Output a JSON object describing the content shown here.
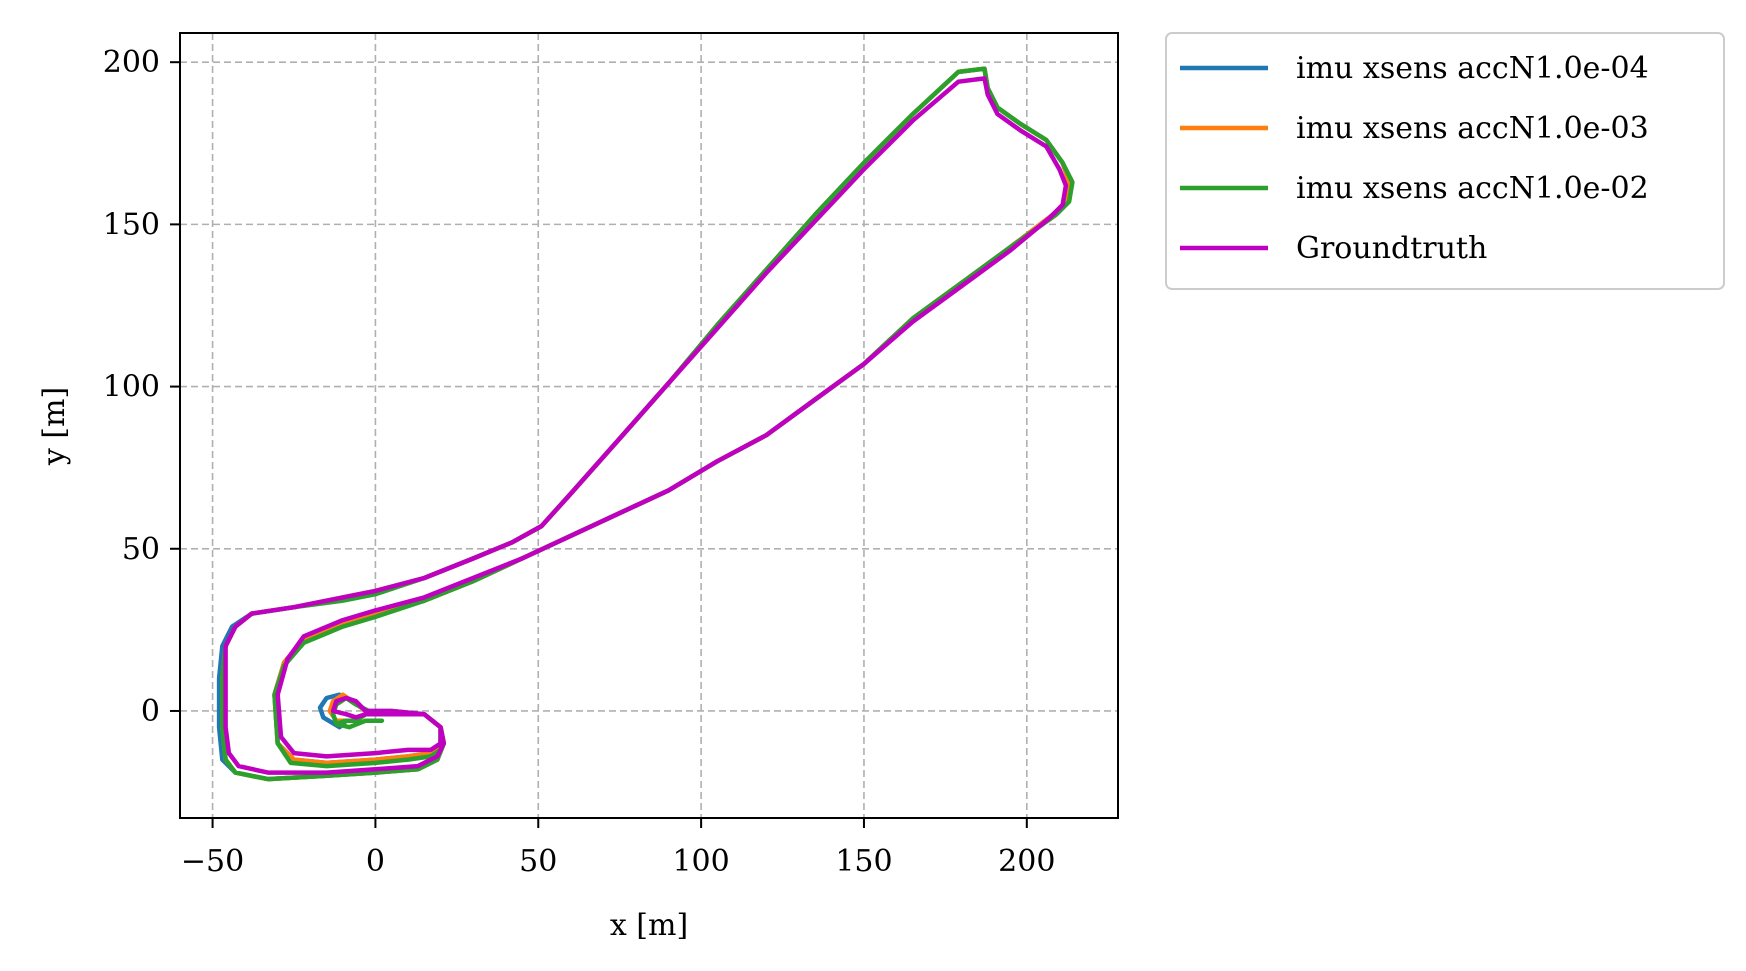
{
  "chart_data": {
    "type": "line",
    "title": "",
    "xlabel": "x [m]",
    "ylabel": "y [m]",
    "xlim": [
      -60,
      228
    ],
    "ylim": [
      -33,
      209
    ],
    "xticks": [
      -50,
      0,
      50,
      100,
      150,
      200
    ],
    "xtick_labels": [
      "−50",
      "0",
      "50",
      "100",
      "150",
      "200"
    ],
    "yticks": [
      0,
      50,
      100,
      150,
      200
    ],
    "ytick_labels": [
      "0",
      "50",
      "100",
      "150",
      "200"
    ],
    "grid": true,
    "legend_position": "outside-upper-right",
    "series": [
      {
        "name": "imu xsens accN1.0e-04",
        "color": "#1f77b4",
        "points": [
          [
            -11,
            -5
          ],
          [
            -16,
            -2
          ],
          [
            -17,
            1
          ],
          [
            -15,
            4
          ],
          [
            -11,
            5
          ],
          [
            -7,
            3
          ],
          [
            -3,
            0
          ],
          [
            5,
            0
          ],
          [
            15,
            -1
          ],
          [
            20,
            -5
          ],
          [
            21,
            -10
          ],
          [
            19,
            -15
          ],
          [
            13,
            -18
          ],
          [
            0,
            -19
          ],
          [
            -15,
            -20
          ],
          [
            -33,
            -21
          ],
          [
            -43,
            -19
          ],
          [
            -47,
            -15
          ],
          [
            -48,
            -5
          ],
          [
            -48,
            10
          ],
          [
            -47,
            20
          ],
          [
            -44,
            26
          ],
          [
            -38,
            30
          ],
          [
            -25,
            32
          ],
          [
            -10,
            35
          ],
          [
            0,
            37
          ],
          [
            15,
            41
          ],
          [
            30,
            47
          ],
          [
            42,
            52
          ],
          [
            51,
            57
          ],
          [
            60,
            67
          ],
          [
            75,
            84
          ],
          [
            90,
            101
          ],
          [
            105,
            119
          ],
          [
            120,
            136
          ],
          [
            135,
            153
          ],
          [
            150,
            169
          ],
          [
            165,
            184
          ],
          [
            179,
            197
          ],
          [
            187,
            198
          ],
          [
            188,
            192
          ],
          [
            191,
            186
          ],
          [
            198,
            181
          ],
          [
            206,
            176
          ],
          [
            211,
            169
          ],
          [
            213,
            163
          ],
          [
            212,
            157
          ],
          [
            208,
            153
          ],
          [
            195,
            143
          ],
          [
            180,
            132
          ],
          [
            165,
            121
          ],
          [
            150,
            107
          ],
          [
            135,
            96
          ],
          [
            120,
            85
          ],
          [
            105,
            77
          ],
          [
            90,
            68
          ],
          [
            75,
            61
          ],
          [
            60,
            54
          ],
          [
            45,
            47
          ],
          [
            30,
            40
          ],
          [
            15,
            34
          ],
          [
            0,
            30
          ],
          [
            -10,
            27
          ],
          [
            -22,
            22
          ],
          [
            -28,
            15
          ],
          [
            -31,
            5
          ],
          [
            -30,
            -10
          ],
          [
            -25,
            -15
          ],
          [
            -15,
            -16
          ],
          [
            0,
            -15
          ],
          [
            10,
            -14
          ],
          [
            17,
            -13
          ],
          [
            20,
            -11
          ],
          [
            20,
            -5
          ],
          [
            15,
            -1
          ],
          [
            5,
            -1
          ],
          [
            -3,
            -1
          ],
          [
            -6,
            -3
          ],
          [
            -9,
            -3
          ],
          [
            -11,
            -5
          ]
        ]
      },
      {
        "name": "imu xsens accN1.0e-03",
        "color": "#ff7f0e",
        "points": [
          [
            -12,
            -3
          ],
          [
            -14,
            0
          ],
          [
            -13,
            3
          ],
          [
            -10,
            5
          ],
          [
            -7,
            3
          ],
          [
            -3,
            0
          ],
          [
            5,
            -1
          ],
          [
            15,
            -1
          ],
          [
            20,
            -5
          ],
          [
            21,
            -10
          ],
          [
            19,
            -15
          ],
          [
            13,
            -18
          ],
          [
            0,
            -19
          ],
          [
            -15,
            -20
          ],
          [
            -33,
            -21
          ],
          [
            -43,
            -19
          ],
          [
            -46,
            -15
          ],
          [
            -47,
            -5
          ],
          [
            -47,
            10
          ],
          [
            -46,
            20
          ],
          [
            -43,
            26
          ],
          [
            -38,
            30
          ],
          [
            -25,
            32
          ],
          [
            -10,
            35
          ],
          [
            0,
            37
          ],
          [
            15,
            41
          ],
          [
            30,
            47
          ],
          [
            42,
            52
          ],
          [
            51,
            57
          ],
          [
            60,
            67
          ],
          [
            75,
            84
          ],
          [
            90,
            101
          ],
          [
            105,
            119
          ],
          [
            120,
            136
          ],
          [
            135,
            153
          ],
          [
            150,
            169
          ],
          [
            165,
            184
          ],
          [
            179,
            197
          ],
          [
            187,
            198
          ],
          [
            188,
            192
          ],
          [
            191,
            186
          ],
          [
            198,
            181
          ],
          [
            206,
            176
          ],
          [
            211,
            169
          ],
          [
            213,
            163
          ],
          [
            212,
            157
          ],
          [
            208,
            153
          ],
          [
            195,
            143
          ],
          [
            180,
            132
          ],
          [
            165,
            121
          ],
          [
            150,
            107
          ],
          [
            135,
            96
          ],
          [
            120,
            85
          ],
          [
            105,
            77
          ],
          [
            90,
            68
          ],
          [
            75,
            61
          ],
          [
            60,
            54
          ],
          [
            45,
            47
          ],
          [
            30,
            40
          ],
          [
            15,
            34
          ],
          [
            0,
            30
          ],
          [
            -10,
            27
          ],
          [
            -22,
            22
          ],
          [
            -28,
            15
          ],
          [
            -31,
            5
          ],
          [
            -30,
            -10
          ],
          [
            -25,
            -15
          ],
          [
            -15,
            -16
          ],
          [
            0,
            -15
          ],
          [
            10,
            -14
          ],
          [
            17,
            -13
          ],
          [
            20,
            -11
          ],
          [
            20,
            -5
          ],
          [
            15,
            -1
          ],
          [
            5,
            -1
          ],
          [
            -3,
            -1
          ],
          [
            -6,
            -3
          ],
          [
            -9,
            -3
          ],
          [
            -12,
            -3
          ]
        ]
      },
      {
        "name": "imu xsens accN1.0e-02",
        "color": "#2ca02c",
        "points": [
          [
            2,
            -3
          ],
          [
            -3,
            -3
          ],
          [
            -8,
            -5
          ],
          [
            -12,
            -4
          ],
          [
            -13,
            -1
          ],
          [
            -12,
            2
          ],
          [
            -9,
            4
          ],
          [
            -6,
            2
          ],
          [
            -2,
            0
          ],
          [
            5,
            -1
          ],
          [
            15,
            -1
          ],
          [
            20,
            -5
          ],
          [
            21,
            -10
          ],
          [
            19,
            -15
          ],
          [
            13,
            -18
          ],
          [
            0,
            -19
          ],
          [
            -15,
            -20
          ],
          [
            -33,
            -21
          ],
          [
            -43,
            -19
          ],
          [
            -46,
            -15
          ],
          [
            -47,
            -5
          ],
          [
            -47,
            10
          ],
          [
            -46,
            20
          ],
          [
            -43,
            26
          ],
          [
            -38,
            30
          ],
          [
            -25,
            32
          ],
          [
            -10,
            34
          ],
          [
            0,
            36
          ],
          [
            15,
            41
          ],
          [
            30,
            47
          ],
          [
            42,
            52
          ],
          [
            51,
            57
          ],
          [
            60,
            67
          ],
          [
            75,
            84
          ],
          [
            90,
            101
          ],
          [
            105,
            119
          ],
          [
            120,
            136
          ],
          [
            135,
            153
          ],
          [
            150,
            169
          ],
          [
            165,
            184
          ],
          [
            179,
            197
          ],
          [
            187,
            198
          ],
          [
            188,
            192
          ],
          [
            191,
            186
          ],
          [
            198,
            181
          ],
          [
            206,
            176
          ],
          [
            211,
            169
          ],
          [
            214,
            163
          ],
          [
            213,
            157
          ],
          [
            209,
            153
          ],
          [
            195,
            143
          ],
          [
            180,
            132
          ],
          [
            165,
            121
          ],
          [
            150,
            107
          ],
          [
            135,
            96
          ],
          [
            120,
            85
          ],
          [
            105,
            77
          ],
          [
            90,
            68
          ],
          [
            75,
            61
          ],
          [
            60,
            54
          ],
          [
            45,
            47
          ],
          [
            30,
            40
          ],
          [
            15,
            34
          ],
          [
            0,
            29
          ],
          [
            -10,
            26
          ],
          [
            -22,
            21
          ],
          [
            -28,
            14
          ],
          [
            -31,
            5
          ],
          [
            -30,
            -10
          ],
          [
            -26,
            -16
          ],
          [
            -15,
            -17
          ],
          [
            0,
            -16
          ],
          [
            10,
            -15
          ],
          [
            17,
            -14
          ],
          [
            20,
            -12
          ],
          [
            20,
            -5
          ],
          [
            15,
            -1
          ],
          [
            5,
            -1
          ],
          [
            -3,
            -1
          ],
          [
            -6,
            -3
          ],
          [
            -9,
            -3
          ],
          [
            -12,
            -4
          ]
        ]
      },
      {
        "name": "Groundtruth",
        "color": "#c000c0",
        "points": [
          [
            -9,
            -1
          ],
          [
            -13,
            0
          ],
          [
            -12,
            3
          ],
          [
            -9,
            4
          ],
          [
            -6,
            3
          ],
          [
            -3,
            0
          ],
          [
            5,
            0
          ],
          [
            15,
            -1
          ],
          [
            20,
            -5
          ],
          [
            21,
            -10
          ],
          [
            19,
            -14
          ],
          [
            13,
            -17
          ],
          [
            0,
            -18
          ],
          [
            -15,
            -19
          ],
          [
            -33,
            -19
          ],
          [
            -42,
            -17
          ],
          [
            -45,
            -13
          ],
          [
            -46,
            -5
          ],
          [
            -46,
            10
          ],
          [
            -46,
            20
          ],
          [
            -43,
            26
          ],
          [
            -38,
            30
          ],
          [
            -25,
            32
          ],
          [
            -10,
            35
          ],
          [
            0,
            37
          ],
          [
            15,
            41
          ],
          [
            30,
            47
          ],
          [
            42,
            52
          ],
          [
            51,
            57
          ],
          [
            60,
            67
          ],
          [
            75,
            84
          ],
          [
            90,
            101
          ],
          [
            105,
            118
          ],
          [
            120,
            135
          ],
          [
            135,
            151
          ],
          [
            150,
            167
          ],
          [
            165,
            182
          ],
          [
            179,
            194
          ],
          [
            187,
            195
          ],
          [
            188,
            190
          ],
          [
            191,
            184
          ],
          [
            198,
            179
          ],
          [
            206,
            174
          ],
          [
            210,
            167
          ],
          [
            212,
            162
          ],
          [
            211,
            156
          ],
          [
            207,
            152
          ],
          [
            195,
            142
          ],
          [
            180,
            131
          ],
          [
            165,
            120
          ],
          [
            150,
            107
          ],
          [
            135,
            96
          ],
          [
            120,
            85
          ],
          [
            105,
            77
          ],
          [
            90,
            68
          ],
          [
            75,
            61
          ],
          [
            60,
            54
          ],
          [
            45,
            47
          ],
          [
            30,
            41
          ],
          [
            15,
            35
          ],
          [
            0,
            31
          ],
          [
            -10,
            28
          ],
          [
            -22,
            23
          ],
          [
            -27,
            16
          ],
          [
            -30,
            5
          ],
          [
            -29,
            -8
          ],
          [
            -25,
            -13
          ],
          [
            -15,
            -14
          ],
          [
            0,
            -13
          ],
          [
            10,
            -12
          ],
          [
            17,
            -12
          ],
          [
            20,
            -10
          ],
          [
            20,
            -5
          ],
          [
            15,
            -1
          ],
          [
            5,
            -1
          ],
          [
            -3,
            -1
          ],
          [
            -6,
            -2
          ],
          [
            -9,
            -1
          ]
        ]
      }
    ]
  }
}
